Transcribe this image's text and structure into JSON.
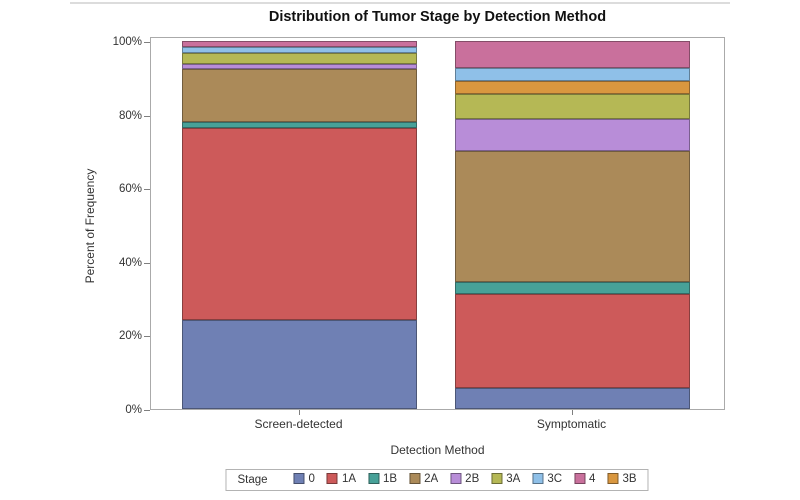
{
  "page": {
    "background": "#ffffff",
    "top_border_color": "#dcdcdc"
  },
  "chart": {
    "title": "Distribution of Tumor Stage by Detection Method",
    "x_axis_title": "Detection Method",
    "y_axis_title": "Percent of Frequency",
    "legend_title": "Stage"
  },
  "chart_data": {
    "type": "bar",
    "stacked": true,
    "unit": "percent",
    "title": "Distribution of Tumor Stage by Detection Method",
    "xlabel": "Detection Method",
    "ylabel": "Percent of Frequency",
    "ylim": [
      0,
      100
    ],
    "ytick_labels": [
      "0%",
      "20%",
      "40%",
      "60%",
      "80%",
      "100%"
    ],
    "ytick_values": [
      0,
      20,
      40,
      60,
      80,
      100
    ],
    "grid": false,
    "categories": [
      "Screen-detected",
      "Symptomatic"
    ],
    "legend_position": "bottom",
    "legend_title": "Stage",
    "legend_order": [
      "0",
      "1A",
      "1B",
      "2A",
      "2B",
      "3A",
      "3C",
      "4",
      "3B"
    ],
    "stack_order_bottom_to_top": [
      "0",
      "1A",
      "1B",
      "2A",
      "2B",
      "3A",
      "3B",
      "3C",
      "4"
    ],
    "series": [
      {
        "name": "0",
        "color": "#6f80b4",
        "values": [
          24.3,
          5.6
        ]
      },
      {
        "name": "1A",
        "color": "#cd5a5a",
        "values": [
          52.0,
          25.7
        ]
      },
      {
        "name": "1B",
        "color": "#47a198",
        "values": [
          1.8,
          3.1
        ]
      },
      {
        "name": "2A",
        "color": "#ab8a59",
        "values": [
          14.3,
          35.6
        ]
      },
      {
        "name": "2B",
        "color": "#b88dd8",
        "values": [
          1.4,
          8.8
        ]
      },
      {
        "name": "3A",
        "color": "#b5b855",
        "values": [
          2.9,
          6.8
        ]
      },
      {
        "name": "3B",
        "color": "#d9973f",
        "values": [
          0.0,
          3.5
        ]
      },
      {
        "name": "3C",
        "color": "#8fc0e8",
        "values": [
          1.7,
          3.5
        ]
      },
      {
        "name": "4",
        "color": "#c9709c",
        "values": [
          1.6,
          7.4
        ]
      }
    ]
  }
}
